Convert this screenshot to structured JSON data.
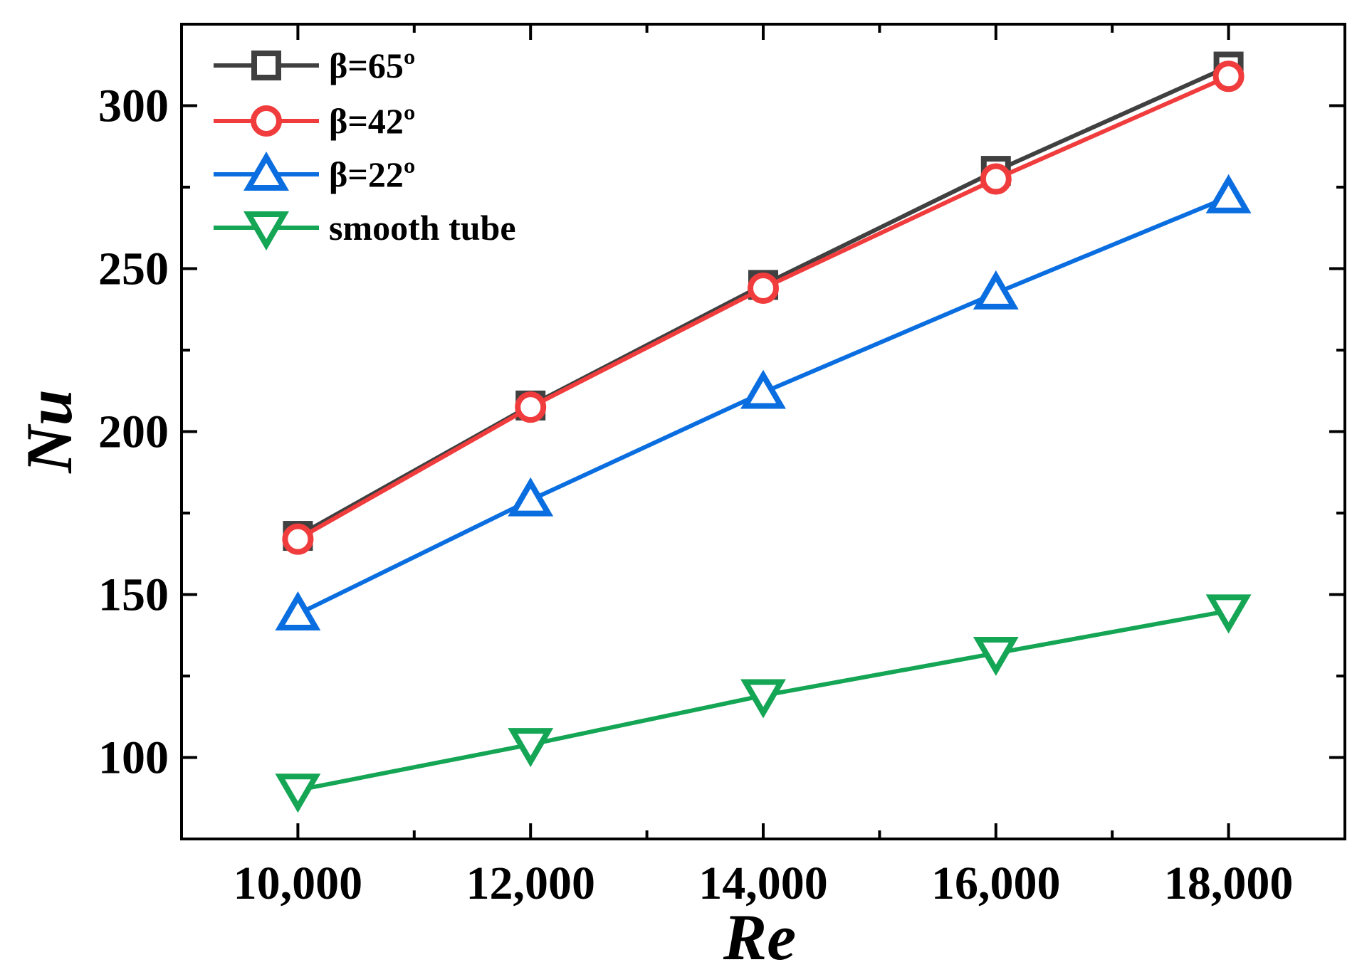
{
  "chart_data": {
    "type": "line",
    "title": "",
    "xlabel": "Re",
    "ylabel": "Nu",
    "x": [
      10000,
      12000,
      14000,
      16000,
      18000
    ],
    "xlim": [
      9000,
      19000
    ],
    "ylim": [
      75,
      325
    ],
    "xticks": [
      10000,
      12000,
      14000,
      16000,
      18000
    ],
    "xtick_labels": [
      "10,000",
      "12,000",
      "14,000",
      "16,000",
      "18,000"
    ],
    "yticks": [
      100,
      150,
      200,
      250,
      300
    ],
    "ytick_labels": [
      "100",
      "150",
      "200",
      "250",
      "300"
    ],
    "grid": false,
    "legend_position": "top-left",
    "series": [
      {
        "name": "β=65º",
        "marker": "square",
        "color": "#404040",
        "values": [
          168,
          208,
          245,
          280,
          312
        ]
      },
      {
        "name": "β=42º",
        "marker": "circle",
        "color": "#f03c3c",
        "values": [
          167,
          207.5,
          244,
          277.5,
          309
        ]
      },
      {
        "name": "β=22º",
        "marker": "triangle-up",
        "color": "#0a6ee0",
        "values": [
          144,
          179,
          212,
          242.5,
          272
        ]
      },
      {
        "name": "smooth tube",
        "marker": "triangle-down",
        "color": "#14a555",
        "values": [
          90,
          104,
          119,
          132,
          145
        ]
      }
    ]
  }
}
